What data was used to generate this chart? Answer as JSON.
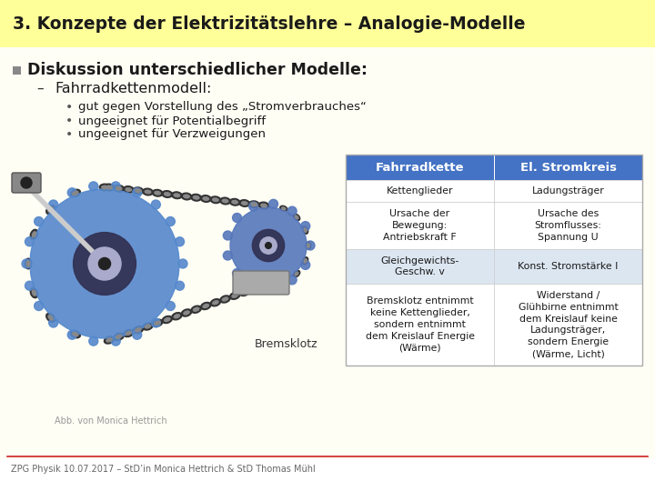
{
  "title": "3. Konzepte der Elektrizitätslehre – Analogie-Modelle",
  "title_bg": "#ffff99",
  "title_color": "#1a1a1a",
  "bullet1": "Diskussion unterschiedlicher Modelle:",
  "bullet2": "Fahrradkettenmodell:",
  "sub_bullets": [
    "gut gegen Vorstellung des „Stromverbrauches“",
    "ungeeignet für Potentialbegriff",
    "ungeeignet für Verzweigungen"
  ],
  "table_header": [
    "Fahrradkette",
    "El. Stromkreis"
  ],
  "table_header_bg": "#4472c4",
  "table_header_color": "#ffffff",
  "table_rows": [
    [
      "Kettenglieder",
      "Ladungsträger"
    ],
    [
      "Ursache der\nBewegung:\nAntriebskraft F",
      "Ursache des\nStromflusses:\nSpannung U"
    ],
    [
      "Gleichgewichts-\nGeschw. v",
      "Konst. Stromstärke I"
    ],
    [
      "Bremsklotz entnimmt\nkeine Kettenglieder,\nsondern entnimmt\ndem Kreislauf Energie\n(Wärme)",
      "Widerstand /\nGlühbirne entnimmt\ndem Kreislauf keine\nLadungsträger,\nsondern Energie\n(Wärme, Licht)"
    ]
  ],
  "table_row_bg_light": "#dce6f1",
  "table_row_bg_white": "#ffffff",
  "footer": "ZPG Physik 10.07.2017 – StD’in Monica Hettrich & StD Thomas Mühl",
  "footer_color": "#666666",
  "bg_color": "#ffffff",
  "content_bg": "#fffef5",
  "abb_text": "Abb. von Monica Hettrich",
  "bremsklotz_label": "Bremsklotz",
  "bullet_color": "#777777",
  "table_border": "#aaaaaa",
  "img_bg": "#f0f0f0",
  "gear_big_color": "#5588cc",
  "gear_small_color": "#5577bb",
  "chain_color": "#555555",
  "bremsklotz_color": "#aaaaaa"
}
